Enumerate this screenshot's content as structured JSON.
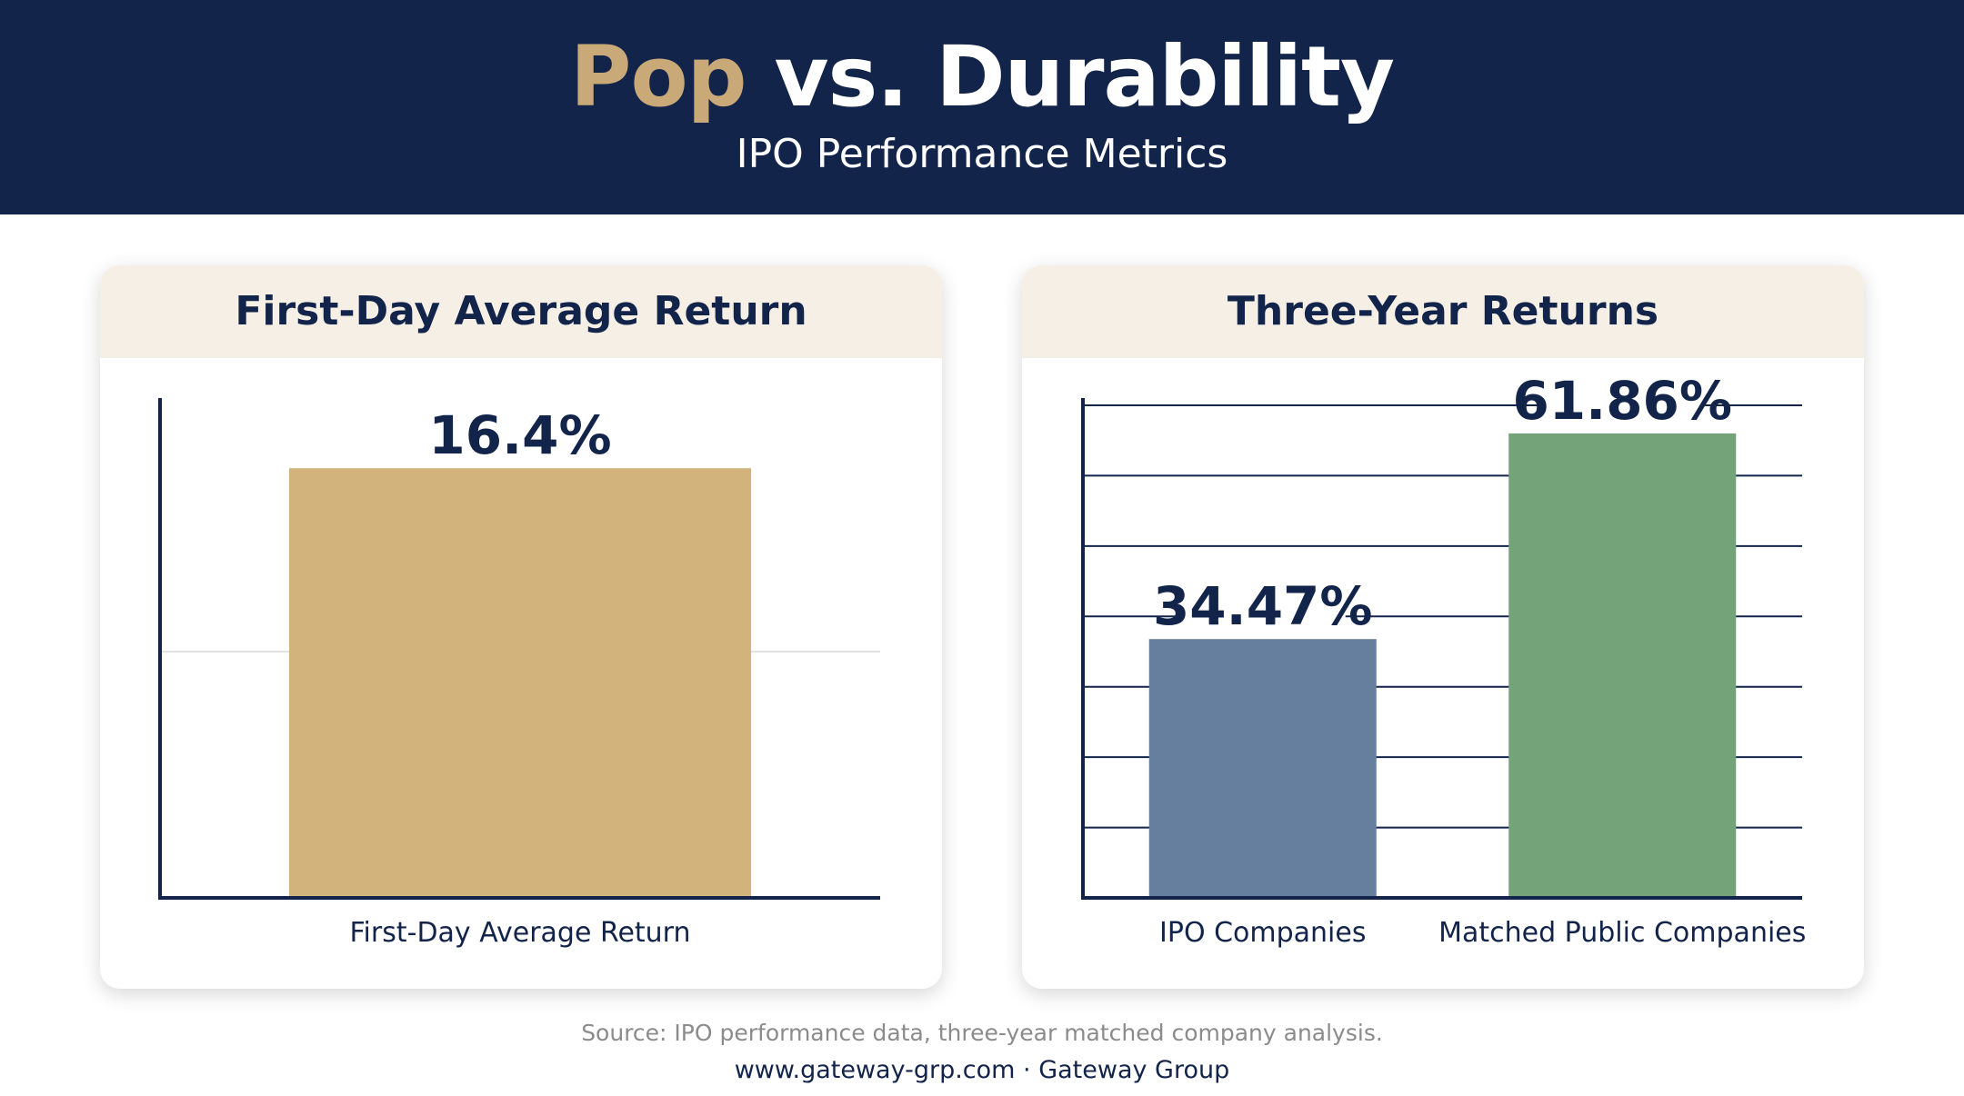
{
  "header": {
    "title_accent": "Pop",
    "title_rest": " vs. Durability",
    "subtitle": "IPO Performance Metrics"
  },
  "colors": {
    "navy": "#13244a",
    "gold": "#d3b37c",
    "slate_blue": "#677f9f",
    "green": "#74a37a",
    "card_header": "#f5efe6"
  },
  "chart_data": [
    {
      "type": "bar",
      "title": "First-Day Average Return",
      "categories": [
        "First-Day Average Return"
      ],
      "values": [
        16.4
      ],
      "value_labels": [
        "16.4%"
      ],
      "ylim": [
        0,
        18.8
      ],
      "yticks": [
        9.4
      ],
      "grid": true,
      "colors": [
        "#d3b37c"
      ]
    },
    {
      "type": "bar",
      "title": "Three-Year Returns",
      "categories": [
        "IPO Companies",
        "Matched Public Companies"
      ],
      "values": [
        34.47,
        61.86
      ],
      "value_labels": [
        "34.47%",
        "61.86%"
      ],
      "ylim": [
        0,
        65.6
      ],
      "yticks": [
        9.37,
        18.74,
        28.11,
        37.49,
        46.86,
        56.23,
        65.6
      ],
      "grid": true,
      "colors": [
        "#677f9f",
        "#74a37a"
      ]
    }
  ],
  "footer": {
    "source": "Source: IPO performance data, three-year matched company analysis.",
    "site": "www.gateway-grp.com · Gateway Group"
  }
}
